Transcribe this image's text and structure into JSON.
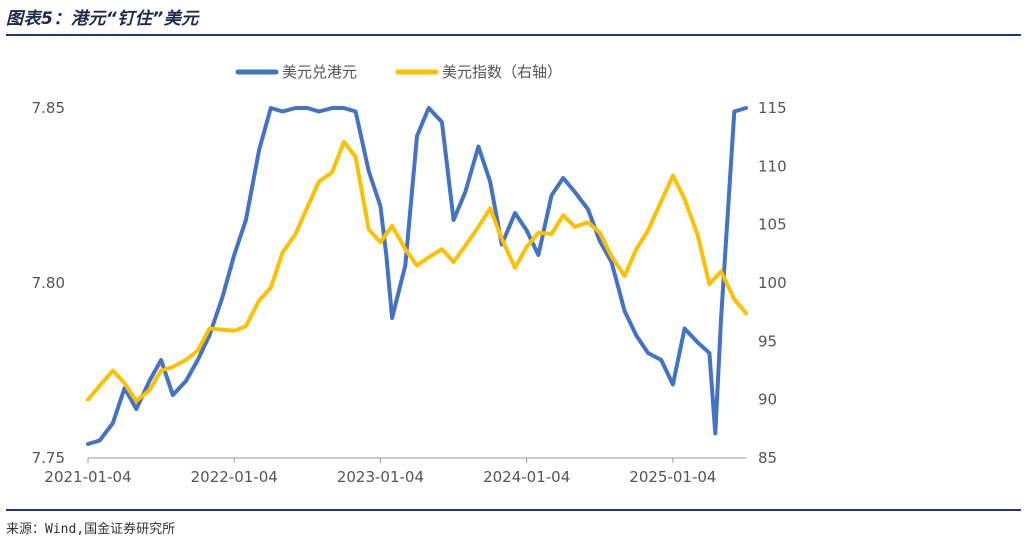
{
  "header": {
    "title": "图表5：港元“钉住”美元"
  },
  "footer": {
    "source": "来源：Wind,国金证券研究所"
  },
  "colors": {
    "usdhkd": "#4472C4",
    "dxy": "#FFC000",
    "rule": "#1f3b6e"
  },
  "chart_data": {
    "type": "line",
    "title": "图表5：港元“钉住”美元",
    "legend_position": "top-center",
    "grid": false,
    "x_tick_labels": [
      "2021-01-04",
      "2022-01-04",
      "2023-01-04",
      "2024-01-04",
      "2025-01-04"
    ],
    "x_range": [
      2021.0,
      2025.5
    ],
    "y_left": {
      "range": [
        7.75,
        7.85
      ],
      "ticks": [
        7.75,
        7.8,
        7.85
      ],
      "tick_labels": [
        "7.75",
        "7.80",
        "7.85"
      ]
    },
    "y_right": {
      "range": [
        85,
        115
      ],
      "ticks": [
        85,
        90,
        95,
        100,
        105,
        110,
        115
      ],
      "tick_labels": [
        "85",
        "90",
        "95",
        "100",
        "105",
        "110",
        "115"
      ]
    },
    "series": [
      {
        "name": "美元兑港元",
        "axis": "left",
        "x": [
          2021.0,
          2021.08,
          2021.17,
          2021.25,
          2021.33,
          2021.42,
          2021.5,
          2021.58,
          2021.67,
          2021.75,
          2021.83,
          2021.92,
          2022.0,
          2022.08,
          2022.17,
          2022.25,
          2022.33,
          2022.42,
          2022.5,
          2022.58,
          2022.67,
          2022.75,
          2022.83,
          2022.92,
          2023.0,
          2023.04,
          2023.08,
          2023.17,
          2023.25,
          2023.33,
          2023.42,
          2023.5,
          2023.58,
          2023.67,
          2023.75,
          2023.83,
          2023.92,
          2024.0,
          2024.08,
          2024.17,
          2024.25,
          2024.33,
          2024.42,
          2024.5,
          2024.58,
          2024.67,
          2024.75,
          2024.83,
          2024.92,
          2025.0,
          2025.08,
          2025.17,
          2025.25,
          2025.29,
          2025.33,
          2025.42,
          2025.5
        ],
        "y": [
          7.754,
          7.755,
          7.76,
          7.77,
          7.764,
          7.772,
          7.778,
          7.768,
          7.772,
          7.778,
          7.785,
          7.796,
          7.808,
          7.818,
          7.838,
          7.85,
          7.849,
          7.85,
          7.85,
          7.849,
          7.85,
          7.85,
          7.849,
          7.832,
          7.822,
          7.808,
          7.79,
          7.805,
          7.842,
          7.85,
          7.846,
          7.818,
          7.826,
          7.839,
          7.829,
          7.811,
          7.82,
          7.815,
          7.808,
          7.825,
          7.83,
          7.826,
          7.821,
          7.812,
          7.806,
          7.792,
          7.785,
          7.78,
          7.778,
          7.771,
          7.787,
          7.783,
          7.78,
          7.757,
          7.79,
          7.849,
          7.85
        ]
      },
      {
        "name": "美元指数（右轴）",
        "axis": "right",
        "x": [
          2021.0,
          2021.08,
          2021.17,
          2021.25,
          2021.33,
          2021.42,
          2021.5,
          2021.58,
          2021.67,
          2021.75,
          2021.83,
          2021.92,
          2022.0,
          2022.08,
          2022.17,
          2022.25,
          2022.33,
          2022.42,
          2022.5,
          2022.58,
          2022.67,
          2022.75,
          2022.83,
          2022.92,
          2023.0,
          2023.08,
          2023.17,
          2023.25,
          2023.33,
          2023.42,
          2023.5,
          2023.58,
          2023.67,
          2023.75,
          2023.83,
          2023.92,
          2024.0,
          2024.08,
          2024.17,
          2024.25,
          2024.33,
          2024.42,
          2024.5,
          2024.58,
          2024.67,
          2024.75,
          2024.83,
          2024.92,
          2025.0,
          2025.08,
          2025.17,
          2025.25,
          2025.33,
          2025.42,
          2025.5
        ],
        "y": [
          90.0,
          91.2,
          92.5,
          91.4,
          89.9,
          90.8,
          92.5,
          92.8,
          93.4,
          94.2,
          96.1,
          96.0,
          95.9,
          96.3,
          98.5,
          99.6,
          102.6,
          104.2,
          106.5,
          108.7,
          109.5,
          112.1,
          110.8,
          104.6,
          103.5,
          104.9,
          102.9,
          101.5,
          102.2,
          102.9,
          101.8,
          103.2,
          104.8,
          106.4,
          103.8,
          101.3,
          103.1,
          104.3,
          104.2,
          105.8,
          104.8,
          105.2,
          104.3,
          102.3,
          100.6,
          102.9,
          104.5,
          107.0,
          109.2,
          107.2,
          104.1,
          99.9,
          101.0,
          98.6,
          97.4
        ]
      }
    ]
  }
}
